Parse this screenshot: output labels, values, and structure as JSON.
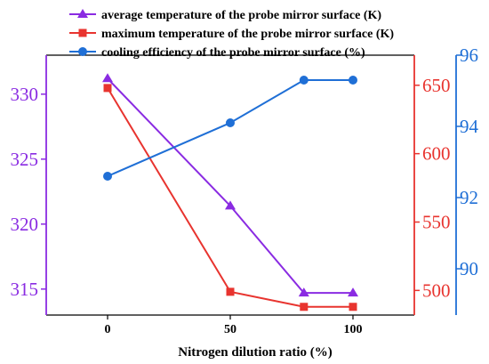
{
  "chart_data": {
    "type": "line",
    "x": [
      0,
      50,
      80,
      100
    ],
    "xlabel": "Nitrogen dilution ratio (%)",
    "x_tick_labels": [
      "0",
      "50",
      "100"
    ],
    "x_ticks": [
      0,
      50,
      100
    ],
    "xlim": [
      -25,
      125
    ],
    "axes": {
      "left": {
        "range": [
          313,
          333
        ],
        "ticks": [
          "315",
          "320",
          "325",
          "330"
        ],
        "color": "#8a2be2"
      },
      "right1": {
        "range": [
          482,
          672
        ],
        "ticks": [
          "500",
          "550",
          "600",
          "650"
        ],
        "color": "#e8342f"
      },
      "right2": {
        "range": [
          88.7,
          96.0
        ],
        "ticks": [
          "90",
          "92",
          "94",
          "96"
        ],
        "color": "#1f6fd6"
      }
    },
    "series": [
      {
        "name": "average temperature of the probe mirror surface (K)",
        "axis": "left",
        "marker": "triangle",
        "color": "#8a2be2",
        "values": [
          331.2,
          321.4,
          314.7,
          314.7
        ]
      },
      {
        "name": "maximum temperature of the probe mirror surface (K)",
        "axis": "right1",
        "marker": "square",
        "color": "#e8342f",
        "values": [
          648,
          499,
          488,
          488
        ]
      },
      {
        "name": "cooling efficiency of the probe mirror surface (%)",
        "axis": "right2",
        "marker": "circle",
        "color": "#1f6fd6",
        "values": [
          92.6,
          94.1,
          95.3,
          95.3
        ]
      }
    ],
    "legend_position": "top-left",
    "grid": false
  }
}
